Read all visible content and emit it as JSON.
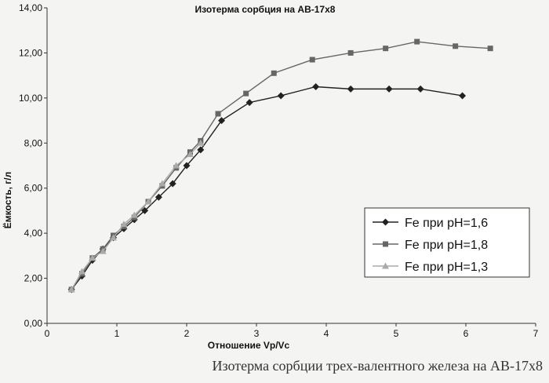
{
  "chart_data": {
    "type": "line",
    "title": "Изотерма сорбция на АВ-17х8",
    "xlabel": "Отношение Vp/Vc",
    "ylabel": "Ёмкость, г/л",
    "xlim": [
      0,
      7
    ],
    "ylim": [
      0,
      14
    ],
    "x_ticks": [
      "0",
      "1",
      "2",
      "3",
      "4",
      "5",
      "6",
      "7"
    ],
    "y_ticks": [
      "0,00",
      "2,00",
      "4,00",
      "6,00",
      "8,00",
      "10,00",
      "12,00",
      "14,00"
    ],
    "grid": false,
    "legend_position": "lower-right",
    "series": [
      {
        "name": "Fe при pH=1,6",
        "color": "#222222",
        "marker": "diamond",
        "x": [
          0.35,
          0.5,
          0.65,
          0.8,
          0.95,
          1.1,
          1.25,
          1.4,
          1.6,
          1.8,
          2.0,
          2.2,
          2.5,
          2.9,
          3.35,
          3.85,
          4.35,
          4.9,
          5.35,
          5.95
        ],
        "y": [
          1.5,
          2.1,
          2.8,
          3.3,
          3.8,
          4.2,
          4.6,
          5.0,
          5.6,
          6.2,
          7.0,
          7.7,
          9.0,
          9.8,
          10.1,
          10.5,
          10.4,
          10.4,
          10.4,
          10.1
        ]
      },
      {
        "name": "Fe при pH=1,8",
        "color": "#666666",
        "marker": "square",
        "x": [
          0.35,
          0.5,
          0.65,
          0.8,
          0.95,
          1.1,
          1.25,
          1.45,
          1.65,
          1.85,
          2.05,
          2.2,
          2.45,
          2.85,
          3.25,
          3.8,
          4.35,
          4.85,
          5.3,
          5.85,
          6.35
        ],
        "y": [
          1.5,
          2.2,
          2.9,
          3.3,
          3.9,
          4.3,
          4.7,
          5.4,
          6.1,
          6.9,
          7.6,
          8.1,
          9.3,
          10.2,
          11.1,
          11.7,
          12.0,
          12.2,
          12.5,
          12.3,
          12.2
        ]
      },
      {
        "name": "Fe при pH=1,3",
        "color": "#aaaaaa",
        "marker": "triangle",
        "x": [
          0.35,
          0.5,
          0.65,
          0.8,
          0.95,
          1.1,
          1.25,
          1.45,
          1.65,
          1.85,
          2.05,
          2.2
        ],
        "y": [
          1.5,
          2.3,
          2.9,
          3.2,
          3.8,
          4.4,
          4.8,
          5.4,
          6.2,
          7.0,
          7.5,
          8.0
        ]
      }
    ]
  },
  "caption": "Изотерма сорбции трех-валентного железа на АВ-17х8"
}
